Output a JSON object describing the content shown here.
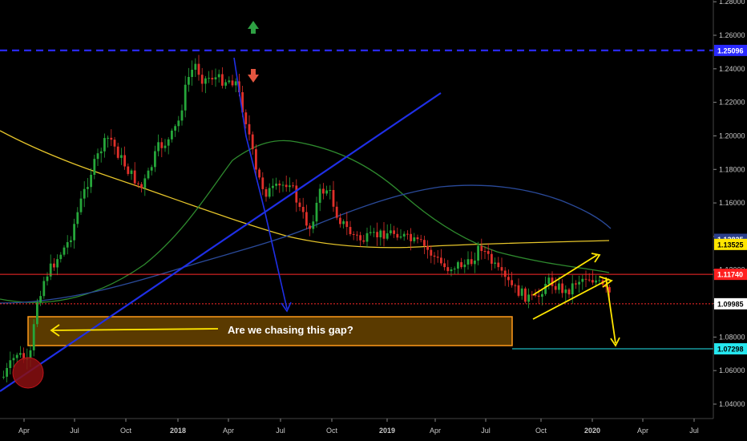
{
  "chart_data": {
    "type": "candlestick",
    "instrument_note": "",
    "y_axis": {
      "ticks": [
        "1.28000",
        "1.26000",
        "1.24000",
        "1.22000",
        "1.20000",
        "1.18000",
        "1.16000",
        "1.14000",
        "1.12000",
        "1.10000",
        "1.08000",
        "1.06000",
        "1.04000"
      ],
      "range": [
        1.028,
        1.283
      ]
    },
    "x_axis": {
      "ticks": [
        "Apr",
        "Jul",
        "Oct",
        "2018",
        "Apr",
        "Jul",
        "Oct",
        "2019",
        "Apr",
        "Jul",
        "Oct",
        "2020",
        "Apr",
        "Jul"
      ]
    },
    "price_tags": [
      {
        "value": "1.25096",
        "bg": "#2929ff",
        "fg": "#ffffff",
        "price": 1.25096
      },
      {
        "value": "1.13825",
        "bg": "#2b3f8c",
        "fg": "#ffffff",
        "price": 1.1383
      },
      {
        "value": "1.13525",
        "bg": "#ffe600",
        "fg": "#000000",
        "price": 1.13525
      },
      {
        "value": "1.11740",
        "bg": "#ff2020",
        "fg": "#ffffff",
        "price": 1.1174
      },
      {
        "value": "1.09985",
        "bg": "#ffffff",
        "fg": "#000000",
        "price": 1.09985
      },
      {
        "value": "1.07298",
        "bg": "#25e6ee",
        "fg": "#000000",
        "price": 1.07298
      }
    ],
    "levels": [
      {
        "price": 1.25096,
        "style": "dashed",
        "color": "#2929ff"
      },
      {
        "price": 1.1174,
        "style": "solid",
        "color": "#ff2a2a"
      },
      {
        "price": 1.09985,
        "style": "dotted",
        "color": "#ff2a2a"
      },
      {
        "price": 1.07298,
        "style": "solid",
        "color": "#25e6ee"
      }
    ],
    "annotation": "Are we chasing this gap?",
    "colors": {
      "up": "#26a63a",
      "down": "#e0302a",
      "ma_yellow": "#e6c52a",
      "ma_green": "#2e8a2e",
      "ma_blue": "#2a4a9a",
      "trend": "#1f2fe6"
    }
  }
}
